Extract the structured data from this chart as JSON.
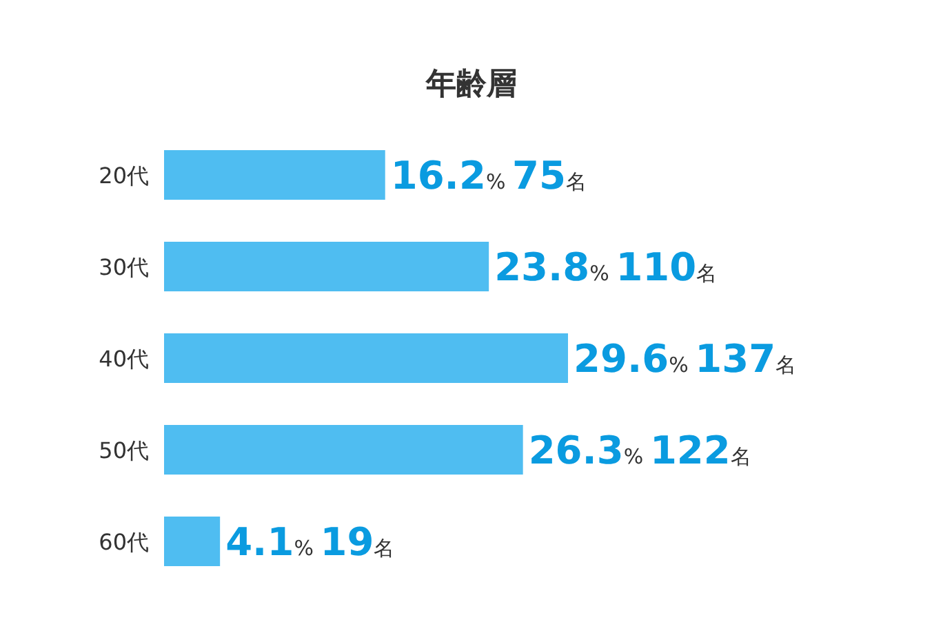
{
  "chart_data": {
    "type": "bar",
    "orientation": "horizontal",
    "title": "年齢層",
    "categories": [
      "20代",
      "30代",
      "40代",
      "50代",
      "60代"
    ],
    "values": [
      16.2,
      23.8,
      29.6,
      26.3,
      4.1
    ],
    "color": "#4fbdf1",
    "value_labels": [
      "16.2% 75名",
      "23.8% 110名",
      "29.6% 137名",
      "26.3% 122名",
      "4.1% 19名"
    ]
  }
}
